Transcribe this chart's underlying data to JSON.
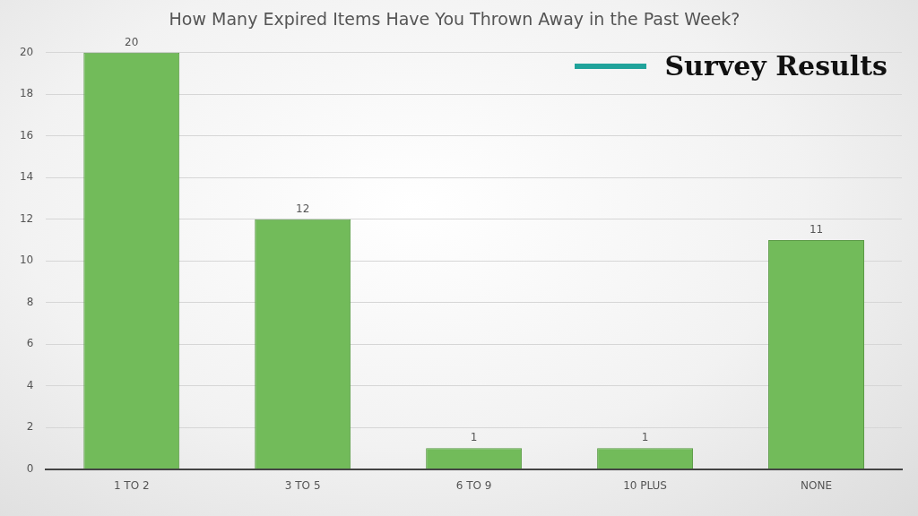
{
  "chart_data": {
    "type": "bar",
    "title": "How Many Expired Items Have You Thrown Away in the Past Week?",
    "subtitle": "Survey Results",
    "categories": [
      "1 TO 2",
      "3 TO 5",
      "6 TO 9",
      "10 PLUS",
      "NONE"
    ],
    "values": [
      20,
      12,
      1,
      1,
      11
    ],
    "color": "#72bb5a",
    "ylim": [
      0,
      20
    ],
    "yticks": [
      0,
      2,
      4,
      6,
      8,
      10,
      12,
      14,
      16,
      18,
      20
    ],
    "grid": "y",
    "data_labels": true
  }
}
